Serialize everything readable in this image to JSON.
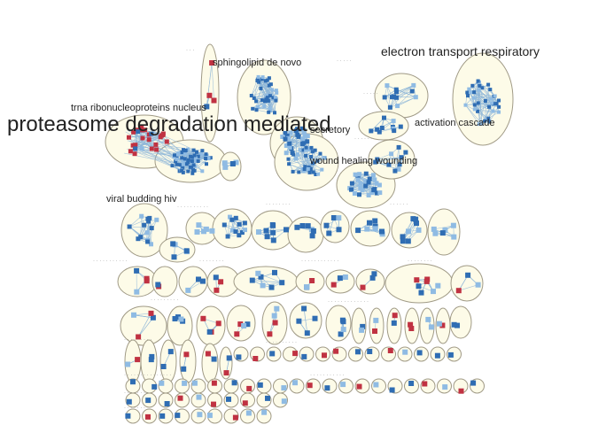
{
  "colors": {
    "blue": "#2f6db3",
    "light_blue": "#8fbbe3",
    "red": "#c03242",
    "cluster_fill": "#fdfbe8",
    "cluster_stroke": "#a09a86"
  },
  "labels": {
    "proteasome": "proteasome degradation mediated",
    "electron": "electron transport respiratory",
    "sphingolipid": "sphingolipid de novo",
    "trna": "trna ribonucleoproteins nucleus",
    "wound": "wound healing wounding",
    "viral": "viral budding hiv",
    "activation": "activation cascade",
    "secretory": "secretory"
  }
}
